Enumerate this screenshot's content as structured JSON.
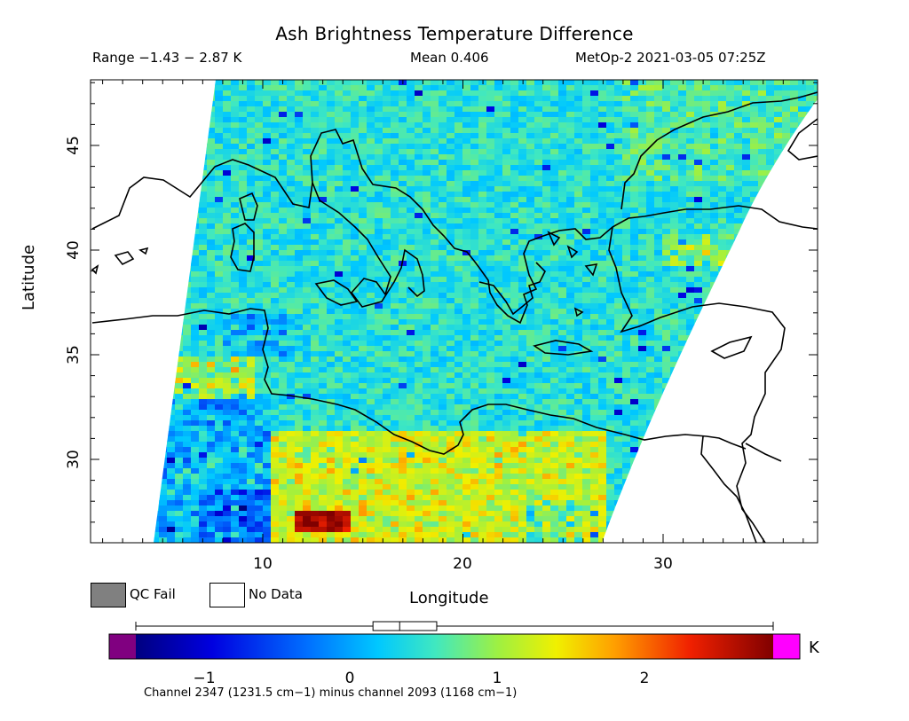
{
  "header": {
    "title": "Ash Brightness Temperature Difference",
    "range_text": "Range −1.43 − 2.87 K",
    "mean_text": "Mean 0.406",
    "satellite_time": "MetOp-2 2021-03-05 07:25Z"
  },
  "axes": {
    "x_label": "Longitude",
    "y_label": "Latitude",
    "x_ticks": [
      "10",
      "20",
      "30"
    ],
    "y_ticks": [
      "30",
      "35",
      "40",
      "45"
    ],
    "lon_range": [
      1,
      37.5
    ],
    "lat_range": [
      26,
      48
    ]
  },
  "legend": {
    "qc_fail_label": "QC Fail",
    "no_data_label": "No Data",
    "qc_fail_color": "#808080",
    "no_data_color": "#ffffff"
  },
  "colorbar": {
    "unit": "K",
    "tick_labels": [
      "−1",
      "0",
      "1",
      "2"
    ],
    "tick_values": [
      -1,
      0,
      1,
      2
    ],
    "range": [
      -1.43,
      2.87
    ],
    "low_overflow_color": "#800080",
    "high_overflow_color": "#ff00ff",
    "box_range": [
      0.17,
      0.6
    ],
    "box_median": 0.35
  },
  "footer": {
    "description": "Channel 2347 (1231.5 cm−1) minus channel 2093 (1168 cm−1)"
  }
}
